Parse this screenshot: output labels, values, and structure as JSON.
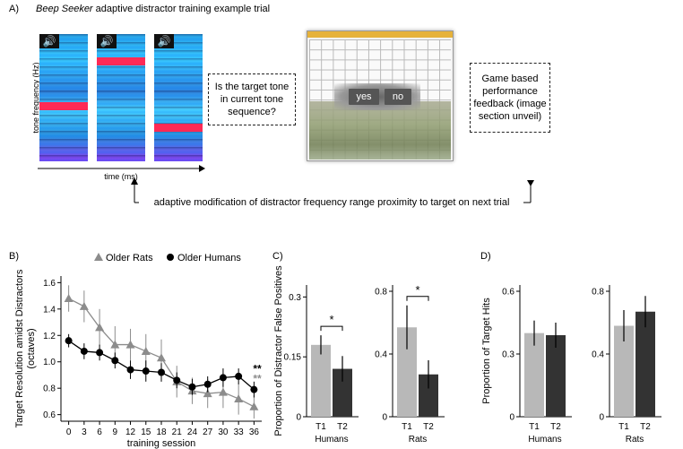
{
  "panelA": {
    "label": "A)",
    "title_italic": "Beep Seeker",
    "title_rest": " adaptive distractor training example trial",
    "ylabel": "tone frequency (Hz)",
    "xlabel": "time (ms)",
    "question": "Is the target tone in current tone sequence?",
    "feedback": "Game based performance feedback (image section unveil)",
    "adaptive_note": "adaptive modification of distractor frequency range proximity to target on next trial",
    "speaker_icon": "speaker-icon",
    "yes_label": "yes",
    "no_label": "no",
    "accent_band": "#ff2a55"
  },
  "chart_data": [
    {
      "panel": "B)",
      "type": "line",
      "xlabel": "training session",
      "ylabel": "Target Resolution amidst Distractors (octaves)",
      "x": [
        0,
        3,
        6,
        9,
        12,
        15,
        18,
        21,
        24,
        27,
        30,
        33,
        36
      ],
      "xticks": [
        "0",
        "3",
        "6",
        "9",
        "12",
        "15",
        "18",
        "21",
        "24",
        "27",
        "30",
        "33",
        "36"
      ],
      "ylim": [
        0.55,
        1.65
      ],
      "yticks": [
        "0.6",
        "0.8",
        "1.0",
        "1.2",
        "1.4",
        "1.6"
      ],
      "series": [
        {
          "name": "Older Rats",
          "marker": "triangle",
          "color": "#8c8c8c",
          "values": [
            1.48,
            1.42,
            1.26,
            1.13,
            1.13,
            1.08,
            1.03,
            0.85,
            0.78,
            0.76,
            0.77,
            0.72,
            0.66
          ],
          "err": [
            0.1,
            0.12,
            0.14,
            0.14,
            0.12,
            0.13,
            0.14,
            0.12,
            0.1,
            0.11,
            0.12,
            0.12,
            0.09
          ]
        },
        {
          "name": "Older Humans",
          "marker": "circle",
          "color": "#000000",
          "values": [
            1.16,
            1.08,
            1.07,
            1.01,
            0.94,
            0.93,
            0.92,
            0.86,
            0.81,
            0.83,
            0.88,
            0.89,
            0.79
          ],
          "err": [
            0.05,
            0.06,
            0.06,
            0.06,
            0.07,
            0.08,
            0.07,
            0.06,
            0.06,
            0.06,
            0.07,
            0.06,
            0.06
          ]
        }
      ],
      "significance": [
        {
          "text": "**",
          "color": "#000000"
        },
        {
          "text": "**",
          "color": "#8c8c8c"
        }
      ]
    },
    {
      "panel": "C)",
      "type": "bar",
      "ylabel": "Proportion of Distractor False Positives",
      "subplots": [
        {
          "group": "Humans",
          "categories": [
            "T1",
            "T2"
          ],
          "values": [
            0.18,
            0.12
          ],
          "err": [
            0.024,
            0.032
          ],
          "ylim": [
            0,
            0.33
          ],
          "yticks": [
            "0",
            "0.15",
            "0.3"
          ],
          "sig": "*"
        },
        {
          "group": "Rats",
          "categories": [
            "T1",
            "T2"
          ],
          "values": [
            0.57,
            0.27
          ],
          "err": [
            0.14,
            0.09
          ],
          "ylim": [
            0,
            0.84
          ],
          "yticks": [
            "0",
            "0.4",
            "0.8"
          ],
          "sig": "*"
        }
      ],
      "colors": [
        "#b8b8b8",
        "#333333"
      ]
    },
    {
      "panel": "D)",
      "type": "bar",
      "ylabel": "Proportion of Target Hits",
      "subplots": [
        {
          "group": "Humans",
          "categories": [
            "T1",
            "T2"
          ],
          "values": [
            0.4,
            0.39
          ],
          "err": [
            0.06,
            0.06
          ],
          "ylim": [
            0,
            0.63
          ],
          "yticks": [
            "0",
            "0.3",
            "0.6"
          ]
        },
        {
          "group": "Rats",
          "categories": [
            "T1",
            "T2"
          ],
          "values": [
            0.58,
            0.67
          ],
          "err": [
            0.1,
            0.1
          ],
          "ylim": [
            0,
            0.84
          ],
          "yticks": [
            "0",
            "0.4",
            "0.8"
          ]
        }
      ],
      "colors": [
        "#b8b8b8",
        "#333333"
      ]
    }
  ]
}
